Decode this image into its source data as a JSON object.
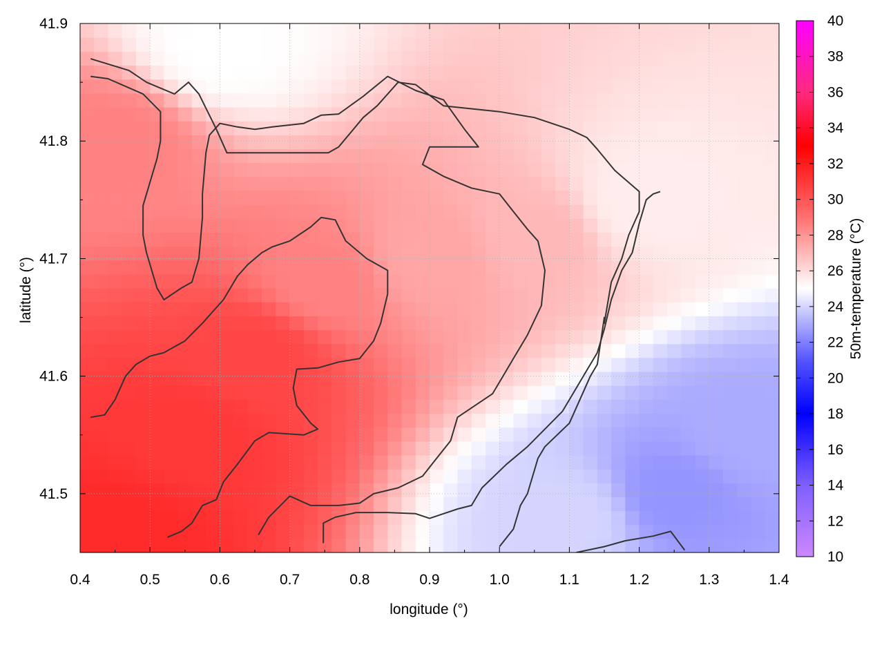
{
  "chart_data": {
    "type": "heatmap",
    "title": "",
    "xlabel": "longitude (°)",
    "ylabel": "latitude (°)",
    "colorbar_label": "50m-temperature (°C)",
    "xlim": [
      0.4,
      1.4
    ],
    "ylim": [
      41.45,
      41.9
    ],
    "x_ticks": [
      0.4,
      0.5,
      0.6,
      0.7,
      0.8,
      0.9,
      1.0,
      1.1,
      1.2,
      1.3,
      1.4
    ],
    "x_tick_labels": [
      "0.4",
      "0.5",
      "0.6",
      "0.7",
      "0.8",
      "0.9",
      "1.0",
      "1.1",
      "1.2",
      "1.3",
      "1.4"
    ],
    "y_ticks": [
      41.5,
      41.6,
      41.7,
      41.8,
      41.9
    ],
    "y_tick_labels": [
      "41.5",
      "41.6",
      "41.7",
      "41.8",
      "41.9"
    ],
    "colorbar_range": [
      10,
      40
    ],
    "colorbar_ticks": [
      10,
      12,
      14,
      16,
      18,
      20,
      22,
      24,
      26,
      28,
      30,
      32,
      34,
      36,
      38,
      40
    ],
    "colorbar_tick_labels": [
      "10",
      "12",
      "14",
      "16",
      "18",
      "20",
      "22",
      "24",
      "26",
      "28",
      "30",
      "32",
      "34",
      "36",
      "38",
      "40"
    ],
    "colormap": [
      {
        "value": 10,
        "color": "#cc88ff"
      },
      {
        "value": 14,
        "color": "#7f5fff"
      },
      {
        "value": 18,
        "color": "#0000ff"
      },
      {
        "value": 21,
        "color": "#5555ff"
      },
      {
        "value": 25,
        "color": "#ffffff"
      },
      {
        "value": 29,
        "color": "#ff7070"
      },
      {
        "value": 33,
        "color": "#ff0000"
      },
      {
        "value": 36,
        "color": "#ff2a7f"
      },
      {
        "value": 40,
        "color": "#ff00ff"
      }
    ],
    "field_description": "warm core over south-west (~31-32 °C), cooling to ~24-25 °C toward north and east, cooler pocket ~22 °C in south-east",
    "temperature_samples": [
      {
        "x": 0.45,
        "y": 41.47,
        "t": 31.5
      },
      {
        "x": 0.55,
        "y": 41.55,
        "t": 31.0
      },
      {
        "x": 0.65,
        "y": 41.62,
        "t": 30.5
      },
      {
        "x": 0.75,
        "y": 41.68,
        "t": 28.5
      },
      {
        "x": 0.9,
        "y": 41.7,
        "t": 27.5
      },
      {
        "x": 1.05,
        "y": 41.72,
        "t": 27.0
      },
      {
        "x": 1.2,
        "y": 41.75,
        "t": 25.5
      },
      {
        "x": 1.35,
        "y": 41.55,
        "t": 23.0
      },
      {
        "x": 1.25,
        "y": 41.5,
        "t": 22.5
      },
      {
        "x": 0.6,
        "y": 41.88,
        "t": 25.0
      },
      {
        "x": 0.45,
        "y": 41.8,
        "t": 28.5
      },
      {
        "x": 1.1,
        "y": 41.48,
        "t": 24.0
      }
    ],
    "contour_lines": [
      [
        [
          0.415,
          41.87
        ],
        [
          0.47,
          41.86
        ],
        [
          0.495,
          41.85
        ],
        [
          0.535,
          41.84
        ],
        [
          0.555,
          41.85
        ],
        [
          0.57,
          41.84
        ],
        [
          0.595,
          41.81
        ],
        [
          0.61,
          41.79
        ],
        [
          0.64,
          41.79
        ],
        [
          0.68,
          41.79
        ],
        [
          0.73,
          41.79
        ],
        [
          0.755,
          41.79
        ],
        [
          0.77,
          41.795
        ],
        [
          0.805,
          41.82
        ],
        [
          0.825,
          41.83
        ],
        [
          0.855,
          41.85
        ],
        [
          0.88,
          41.848
        ],
        [
          0.92,
          41.83
        ],
        [
          1.0,
          41.825
        ],
        [
          1.05,
          41.82
        ],
        [
          1.1,
          41.81
        ],
        [
          1.125,
          41.803
        ],
        [
          1.14,
          41.793
        ],
        [
          1.165,
          41.775
        ],
        [
          1.2,
          41.757
        ],
        [
          1.2,
          41.74
        ],
        [
          1.185,
          41.72
        ],
        [
          1.175,
          41.7
        ],
        [
          1.16,
          41.68
        ],
        [
          1.15,
          41.645
        ],
        [
          1.15,
          41.65
        ],
        [
          1.14,
          41.61
        ],
        [
          1.13,
          41.6
        ],
        [
          1.1,
          41.56
        ],
        [
          1.065,
          41.54
        ],
        [
          1.055,
          41.53
        ],
        [
          1.04,
          41.5
        ],
        [
          1.03,
          41.49
        ],
        [
          1.02,
          41.47
        ],
        [
          1.0,
          41.455
        ]
      ],
      [
        [
          0.415,
          41.855
        ],
        [
          0.44,
          41.853
        ],
        [
          0.49,
          41.84
        ],
        [
          0.515,
          41.825
        ],
        [
          0.515,
          41.8
        ],
        [
          0.51,
          41.785
        ],
        [
          0.49,
          41.745
        ],
        [
          0.49,
          41.72
        ],
        [
          0.495,
          41.705
        ],
        [
          0.5,
          41.695
        ],
        [
          0.51,
          41.675
        ],
        [
          0.52,
          41.665
        ],
        [
          0.545,
          41.675
        ],
        [
          0.56,
          41.68
        ],
        [
          0.57,
          41.7
        ],
        [
          0.575,
          41.735
        ],
        [
          0.575,
          41.755
        ],
        [
          0.58,
          41.79
        ],
        [
          0.585,
          41.805
        ],
        [
          0.6,
          41.815
        ],
        [
          0.625,
          41.812
        ],
        [
          0.65,
          41.81
        ],
        [
          0.675,
          41.812
        ],
        [
          0.72,
          41.815
        ],
        [
          0.745,
          41.822
        ],
        [
          0.77,
          41.823
        ],
        [
          0.805,
          41.838
        ],
        [
          0.84,
          41.855
        ],
        [
          0.88,
          41.843
        ],
        [
          0.92,
          41.835
        ],
        [
          0.95,
          41.81
        ],
        [
          0.97,
          41.795
        ],
        [
          0.935,
          41.795
        ],
        [
          0.9,
          41.795
        ],
        [
          0.89,
          41.78
        ],
        [
          0.92,
          41.77
        ],
        [
          0.96,
          41.76
        ],
        [
          1.0,
          41.755
        ],
        [
          1.02,
          41.74
        ],
        [
          1.04,
          41.725
        ],
        [
          1.055,
          41.715
        ],
        [
          1.065,
          41.69
        ],
        [
          1.06,
          41.66
        ],
        [
          1.04,
          41.635
        ],
        [
          1.02,
          41.615
        ],
        [
          1.005,
          41.6
        ],
        [
          0.99,
          41.585
        ],
        [
          0.965,
          41.575
        ],
        [
          0.94,
          41.565
        ],
        [
          0.93,
          41.545
        ],
        [
          0.91,
          41.53
        ],
        [
          0.89,
          41.515
        ],
        [
          0.855,
          41.505
        ],
        [
          0.82,
          41.5
        ],
        [
          0.8,
          41.492
        ],
        [
          0.77,
          41.49
        ],
        [
          0.73,
          41.49
        ],
        [
          0.7,
          41.498
        ],
        [
          0.67,
          41.48
        ],
        [
          0.655,
          41.465
        ]
      ],
      [
        [
          0.415,
          41.565
        ],
        [
          0.435,
          41.567
        ],
        [
          0.45,
          41.58
        ],
        [
          0.465,
          41.6
        ],
        [
          0.48,
          41.61
        ],
        [
          0.5,
          41.617
        ],
        [
          0.52,
          41.62
        ],
        [
          0.55,
          41.63
        ],
        [
          0.575,
          41.645
        ],
        [
          0.59,
          41.655
        ],
        [
          0.605,
          41.665
        ],
        [
          0.625,
          41.685
        ],
        [
          0.64,
          41.695
        ],
        [
          0.66,
          41.705
        ],
        [
          0.675,
          41.71
        ],
        [
          0.7,
          41.715
        ],
        [
          0.73,
          41.727
        ],
        [
          0.745,
          41.735
        ],
        [
          0.765,
          41.733
        ],
        [
          0.78,
          41.715
        ],
        [
          0.81,
          41.7
        ],
        [
          0.84,
          41.69
        ],
        [
          0.84,
          41.67
        ],
        [
          0.83,
          41.645
        ],
        [
          0.82,
          41.63
        ],
        [
          0.8,
          41.615
        ],
        [
          0.77,
          41.612
        ],
        [
          0.74,
          41.607
        ],
        [
          0.71,
          41.606
        ],
        [
          0.705,
          41.59
        ],
        [
          0.71,
          41.575
        ],
        [
          0.73,
          41.56
        ],
        [
          0.74,
          41.555
        ],
        [
          0.72,
          41.55
        ],
        [
          0.67,
          41.552
        ],
        [
          0.65,
          41.545
        ],
        [
          0.64,
          41.537
        ],
        [
          0.625,
          41.525
        ],
        [
          0.605,
          41.51
        ],
        [
          0.595,
          41.495
        ],
        [
          0.575,
          41.49
        ],
        [
          0.56,
          41.475
        ],
        [
          0.545,
          41.468
        ],
        [
          0.525,
          41.463
        ]
      ],
      [
        [
          0.748,
          41.458
        ],
        [
          0.748,
          41.475
        ],
        [
          0.765,
          41.48
        ],
        [
          0.795,
          41.484
        ],
        [
          0.84,
          41.484
        ],
        [
          0.88,
          41.483
        ],
        [
          0.9,
          41.479
        ],
        [
          0.92,
          41.483
        ],
        [
          0.94,
          41.487
        ],
        [
          0.96,
          41.49
        ],
        [
          0.975,
          41.505
        ],
        [
          1.01,
          41.525
        ],
        [
          1.04,
          41.54
        ],
        [
          1.065,
          41.555
        ],
        [
          1.09,
          41.57
        ],
        [
          1.105,
          41.585
        ],
        [
          1.12,
          41.6
        ],
        [
          1.14,
          41.62
        ],
        [
          1.15,
          41.64
        ],
        [
          1.16,
          41.665
        ],
        [
          1.175,
          41.69
        ],
        [
          1.19,
          41.705
        ],
        [
          1.2,
          41.73
        ],
        [
          1.21,
          41.75
        ],
        [
          1.22,
          41.755
        ],
        [
          1.23,
          41.757
        ]
      ],
      [
        [
          1.11,
          41.45
        ],
        [
          1.15,
          41.455
        ],
        [
          1.18,
          41.46
        ],
        [
          1.22,
          41.464
        ],
        [
          1.245,
          41.468
        ],
        [
          1.265,
          41.452
        ]
      ]
    ]
  }
}
